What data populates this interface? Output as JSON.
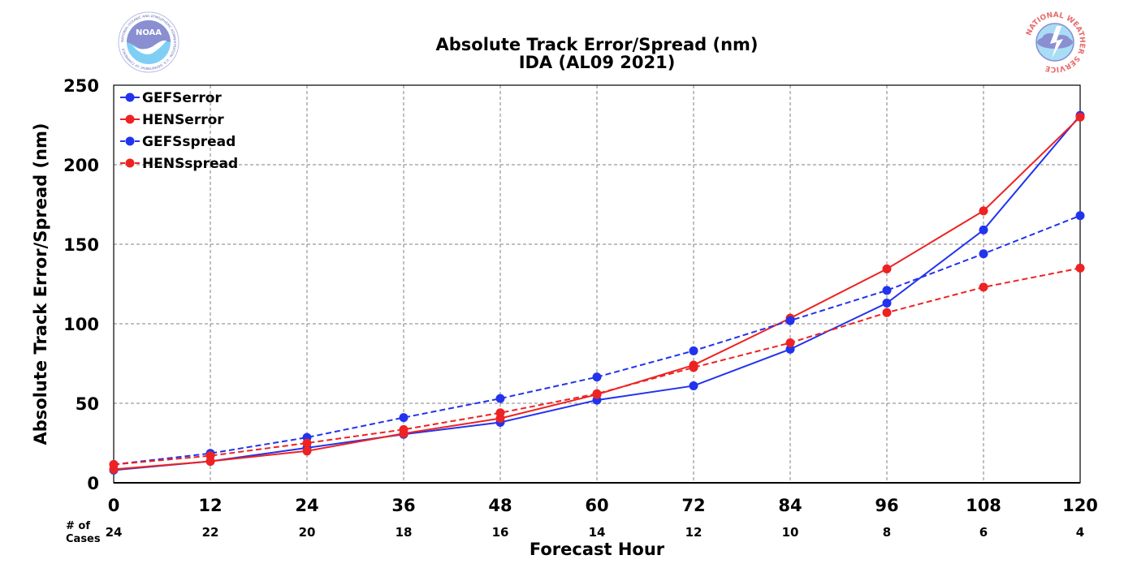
{
  "header": {
    "title_line1": "Absolute Track Error/Spread (nm)",
    "title_line2": "IDA (AL09 2021)"
  },
  "logos": {
    "noaa": {
      "text": "NOAA",
      "ring_text": "NATIONAL OCEANIC AND ATMOSPHERIC ADMINISTRATION · U.S. DEPARTMENT OF COMMERCE",
      "colors": [
        "#7fcff5",
        "#8a8fd1"
      ]
    },
    "nws": {
      "ring_text": "NATIONAL WEATHER SERVICE",
      "colors": [
        "#e96a6a",
        "#8a8fd1"
      ]
    }
  },
  "cases": {
    "label_line1": "# of",
    "label_line2": "Cases",
    "values": [
      "24",
      "22",
      "20",
      "18",
      "16",
      "14",
      "12",
      "10",
      "8",
      "6",
      "4"
    ]
  },
  "chart_data": {
    "type": "line",
    "title": "Absolute Track Error/Spread (nm)\nIDA (AL09 2021)",
    "xlabel": "Forecast Hour",
    "ylabel": "Absolute Track Error/Spread (nm)",
    "x": [
      0,
      12,
      24,
      36,
      48,
      60,
      72,
      84,
      96,
      108,
      120
    ],
    "x_ticks": [
      "0",
      "12",
      "24",
      "36",
      "48",
      "60",
      "72",
      "84",
      "96",
      "108",
      "120"
    ],
    "xlim": [
      0,
      120
    ],
    "ylim": [
      0,
      250
    ],
    "y_ticks": [
      "0",
      "50",
      "100",
      "150",
      "200",
      "250"
    ],
    "grid": true,
    "legend_position": "top-left",
    "series": [
      {
        "name": "GEFSerror",
        "color": "#2233ee",
        "style": "solid",
        "values": [
          8,
          13.5,
          22,
          30.5,
          38,
          52,
          61,
          84,
          113,
          159,
          231
        ]
      },
      {
        "name": "HENSerror",
        "color": "#ee2222",
        "style": "solid",
        "values": [
          8.5,
          13.5,
          20,
          31,
          40.5,
          55.5,
          74,
          103.5,
          134.5,
          171,
          230
        ]
      },
      {
        "name": "GEFSspread",
        "color": "#2233ee",
        "style": "dashed",
        "values": [
          11.5,
          18.5,
          28.5,
          41,
          53,
          66.5,
          83,
          102,
          121,
          144,
          168
        ]
      },
      {
        "name": "HENSspread",
        "color": "#ee2222",
        "style": "dashed",
        "values": [
          11.5,
          17,
          25,
          33.5,
          44,
          56,
          72.5,
          88,
          107,
          123,
          135
        ]
      }
    ]
  }
}
